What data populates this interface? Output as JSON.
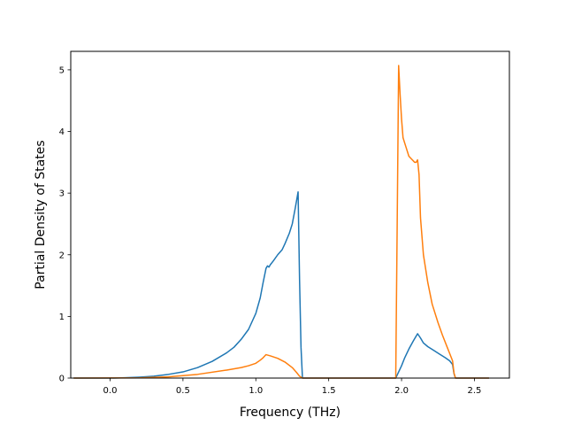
{
  "chart_data": {
    "type": "line",
    "title": "",
    "xlabel": "Frequency (THz)",
    "ylabel": "Partial Density of States",
    "xlim": [
      -0.27,
      2.74
    ],
    "ylim": [
      0,
      5.3
    ],
    "xticks": [
      0.0,
      0.5,
      1.0,
      1.5,
      2.0,
      2.5
    ],
    "xtick_labels": [
      "0.0",
      "0.5",
      "1.0",
      "1.5",
      "2.0",
      "2.5"
    ],
    "yticks": [
      0,
      1,
      2,
      3,
      4,
      5
    ],
    "ytick_labels": [
      "0",
      "1",
      "2",
      "3",
      "4",
      "5"
    ],
    "grid": false,
    "legend": "none",
    "series": [
      {
        "color": "#1f77b4",
        "points": [
          [
            -0.25,
            0
          ],
          [
            0.0,
            0
          ],
          [
            0.1,
            0.005
          ],
          [
            0.2,
            0.015
          ],
          [
            0.3,
            0.03
          ],
          [
            0.4,
            0.06
          ],
          [
            0.5,
            0.1
          ],
          [
            0.6,
            0.17
          ],
          [
            0.7,
            0.27
          ],
          [
            0.8,
            0.41
          ],
          [
            0.85,
            0.5
          ],
          [
            0.9,
            0.63
          ],
          [
            0.95,
            0.79
          ],
          [
            1.0,
            1.05
          ],
          [
            1.03,
            1.3
          ],
          [
            1.05,
            1.55
          ],
          [
            1.07,
            1.78
          ],
          [
            1.08,
            1.82
          ],
          [
            1.09,
            1.8
          ],
          [
            1.1,
            1.84
          ],
          [
            1.12,
            1.9
          ],
          [
            1.15,
            2.0
          ],
          [
            1.18,
            2.08
          ],
          [
            1.2,
            2.18
          ],
          [
            1.23,
            2.35
          ],
          [
            1.25,
            2.5
          ],
          [
            1.27,
            2.75
          ],
          [
            1.29,
            3.02
          ],
          [
            1.3,
            1.6
          ],
          [
            1.31,
            0.5
          ],
          [
            1.32,
            0
          ],
          [
            1.6,
            0
          ],
          [
            1.96,
            0
          ],
          [
            1.98,
            0.1
          ],
          [
            2.0,
            0.2
          ],
          [
            2.02,
            0.32
          ],
          [
            2.05,
            0.47
          ],
          [
            2.08,
            0.6
          ],
          [
            2.11,
            0.72
          ],
          [
            2.13,
            0.65
          ],
          [
            2.15,
            0.57
          ],
          [
            2.18,
            0.51
          ],
          [
            2.22,
            0.45
          ],
          [
            2.26,
            0.39
          ],
          [
            2.3,
            0.33
          ],
          [
            2.33,
            0.28
          ],
          [
            2.35,
            0.22
          ],
          [
            2.36,
            0.07
          ],
          [
            2.37,
            0
          ],
          [
            2.6,
            0
          ]
        ]
      },
      {
        "color": "#ff7f0e",
        "points": [
          [
            -0.25,
            0
          ],
          [
            0.2,
            0.003
          ],
          [
            0.4,
            0.02
          ],
          [
            0.6,
            0.06
          ],
          [
            0.8,
            0.13
          ],
          [
            0.9,
            0.17
          ],
          [
            0.95,
            0.2
          ],
          [
            1.0,
            0.24
          ],
          [
            1.03,
            0.29
          ],
          [
            1.05,
            0.33
          ],
          [
            1.07,
            0.38
          ],
          [
            1.1,
            0.36
          ],
          [
            1.15,
            0.32
          ],
          [
            1.2,
            0.26
          ],
          [
            1.25,
            0.17
          ],
          [
            1.28,
            0.09
          ],
          [
            1.3,
            0.03
          ],
          [
            1.32,
            0
          ],
          [
            1.6,
            0
          ],
          [
            1.96,
            0
          ],
          [
            1.97,
            2.5
          ],
          [
            1.98,
            5.07
          ],
          [
            1.99,
            4.6
          ],
          [
            2.0,
            4.2
          ],
          [
            2.01,
            3.9
          ],
          [
            2.03,
            3.75
          ],
          [
            2.05,
            3.6
          ],
          [
            2.07,
            3.55
          ],
          [
            2.09,
            3.5
          ],
          [
            2.1,
            3.5
          ],
          [
            2.11,
            3.54
          ],
          [
            2.12,
            3.3
          ],
          [
            2.13,
            2.6
          ],
          [
            2.15,
            2.0
          ],
          [
            2.18,
            1.55
          ],
          [
            2.21,
            1.2
          ],
          [
            2.25,
            0.9
          ],
          [
            2.28,
            0.7
          ],
          [
            2.31,
            0.52
          ],
          [
            2.33,
            0.4
          ],
          [
            2.35,
            0.28
          ],
          [
            2.36,
            0.08
          ],
          [
            2.37,
            0
          ],
          [
            2.6,
            0
          ]
        ]
      }
    ]
  }
}
